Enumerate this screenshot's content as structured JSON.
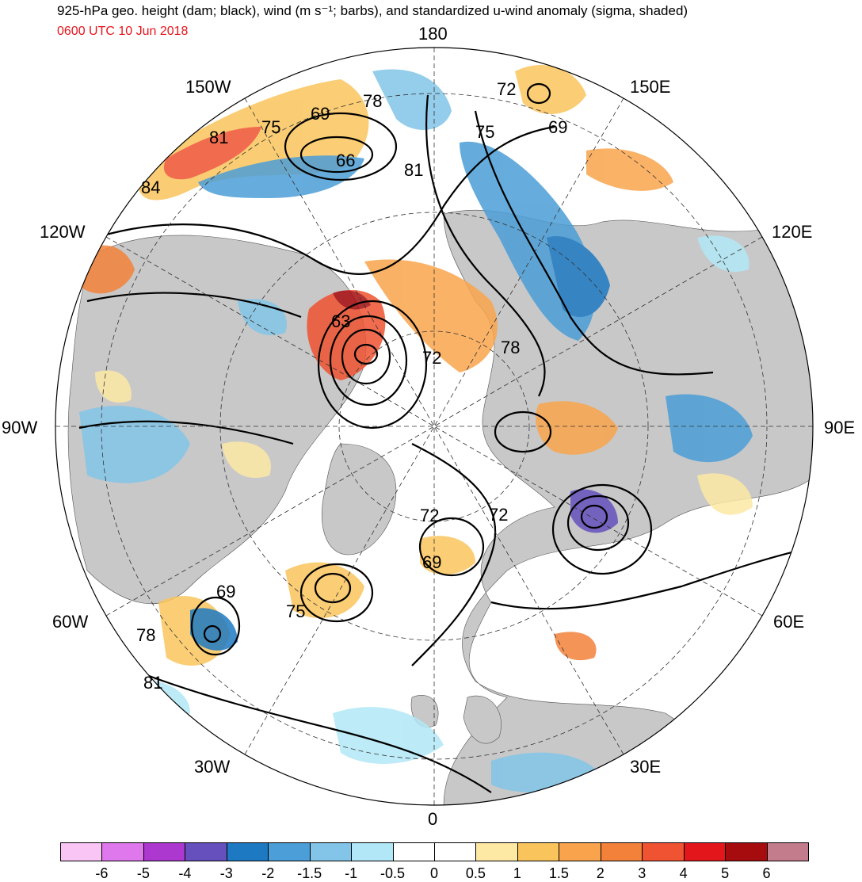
{
  "title": "925-hPa geo. height (dam; black), wind (m s⁻¹; barbs), and standardized u-wind anomaly (sigma, shaded)",
  "subtitle": "0600 UTC 10 Jun 2018",
  "subtitle_color": "#e8141c",
  "longitude_labels": [
    "180",
    "150E",
    "120E",
    "90E",
    "60E",
    "30E",
    "0",
    "30W",
    "60W",
    "90W",
    "120W",
    "150W"
  ],
  "contour_labels": [
    "72",
    "75",
    "69",
    "69",
    "81",
    "66",
    "78",
    "75",
    "81",
    "84",
    "63",
    "72",
    "78",
    "72",
    "72",
    "69",
    "69",
    "75",
    "78",
    "81"
  ],
  "colorbar": {
    "colors": [
      "#f9c5f5",
      "#df78ec",
      "#ad38cf",
      "#6550bd",
      "#1d79c2",
      "#4b9ed7",
      "#82c5e8",
      "#b1e7f6",
      "#ffffff",
      "#ffffff",
      "#fde9a3",
      "#fac45c",
      "#f9a44c",
      "#f3813a",
      "#ef5331",
      "#e3161b",
      "#a60c0e",
      "#c37c8b"
    ],
    "tick_labels": [
      "-6",
      "-5",
      "-4",
      "-3",
      "-2",
      "-1.5",
      "-1",
      "-0.5",
      "0",
      "0.5",
      "1",
      "1.5",
      "2",
      "3",
      "4",
      "5",
      "6"
    ]
  }
}
